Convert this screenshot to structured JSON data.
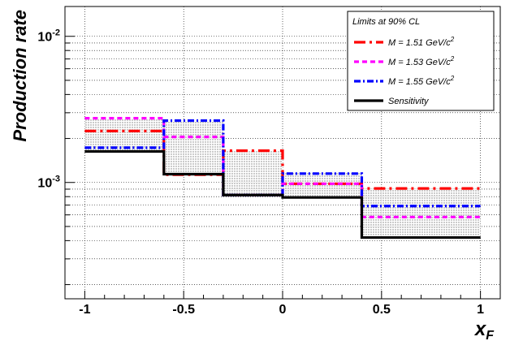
{
  "chart_data": {
    "type": "line",
    "step": true,
    "xlabel_main": "x",
    "xlabel_sub": "F",
    "ylabel": "Production rate",
    "xlim": [
      -1.1,
      1.1
    ],
    "ylim": [
      0.00016,
      0.016
    ],
    "yscale": "log",
    "grid": true,
    "x_ticks": [
      -1,
      -0.5,
      0,
      0.5,
      1
    ],
    "x_tick_labels": [
      "-1",
      "-0.5",
      "0",
      "0.5",
      "1"
    ],
    "y_tick_labels": [
      {
        "base": "10",
        "exp": "-3",
        "value": 0.001
      },
      {
        "base": "10",
        "exp": "-2",
        "value": 0.01
      }
    ],
    "bin_edges": [
      -1,
      -0.6,
      -0.3,
      0,
      0.4,
      1
    ],
    "legend": {
      "title": "Limits at 90% CL",
      "position": "top-right"
    },
    "series": [
      {
        "name_prefix": "M = 1.51 GeV/c",
        "name_sup": "2",
        "color": "#ff0000",
        "style": "dash-dot-long",
        "values": [
          0.00225,
          0.00113,
          0.00165,
          0.00098,
          0.00091
        ]
      },
      {
        "name_prefix": "M = 1.53 GeV/c",
        "name_sup": "2",
        "color": "#ff00ff",
        "style": "dashed",
        "values": [
          0.00275,
          0.00205,
          0.00082,
          0.00098,
          0.00058
        ]
      },
      {
        "name_prefix": "M = 1.55 GeV/c",
        "name_sup": "2",
        "color": "#0000ff",
        "style": "dash-dot",
        "values": [
          0.00173,
          0.00265,
          0.00082,
          0.00115,
          0.00069
        ]
      },
      {
        "name_prefix": "Sensitivity",
        "name_sup": "",
        "color": "#000000",
        "style": "solid",
        "values": [
          0.00163,
          0.00114,
          0.00082,
          0.00079,
          0.00042
        ]
      }
    ],
    "band": {
      "lower": [
        0.00163,
        0.00114,
        0.00082,
        0.00079,
        0.00042
      ],
      "upper": [
        0.00275,
        0.00265,
        0.00165,
        0.00118,
        0.00091
      ]
    }
  }
}
